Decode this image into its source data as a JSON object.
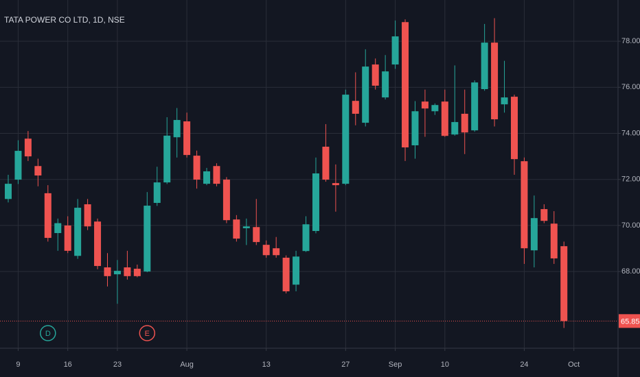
{
  "chart_data": {
    "type": "candlestick",
    "title": "TATA POWER CO LTD, 1D, NSE",
    "up_color": "#26a69a",
    "down_color": "#ef5350",
    "open": [
      71.15,
      71.99,
      73.77,
      72.58,
      71.4,
      69.67,
      70.0,
      68.68,
      70.92,
      70.17,
      68.18,
      67.88,
      68.18,
      68.12,
      68.0,
      70.98,
      71.87,
      73.83,
      74.52,
      73.03,
      71.81,
      72.58,
      71.99,
      70.26,
      69.88,
      69.93,
      69.16,
      69.01,
      68.6,
      67.43,
      68.89,
      69.76,
      73.42,
      71.84,
      71.81,
      75.41,
      74.46,
      76.99,
      75.56,
      76.99,
      78.83,
      73.48,
      75.38,
      74.96,
      75.38,
      73.95,
      74.85,
      74.13,
      75.92,
      77.94,
      75.26,
      75.59,
      72.79,
      68.92,
      70.71,
      70.08,
      69.1
    ],
    "high": [
      72.2,
      73.7,
      74.1,
      72.9,
      71.75,
      70.3,
      70.4,
      71.15,
      71.15,
      70.3,
      68.8,
      68.5,
      68.9,
      68.3,
      71.45,
      72.55,
      74.7,
      75.1,
      74.9,
      73.25,
      72.5,
      72.7,
      72.1,
      70.45,
      70.3,
      71.15,
      69.35,
      69.5,
      68.7,
      68.9,
      70.4,
      72.95,
      74.4,
      72.65,
      75.9,
      76.65,
      77.65,
      77.25,
      77.4,
      78.9,
      78.95,
      75.4,
      75.9,
      75.3,
      75.9,
      76.95,
      75.9,
      76.3,
      78.75,
      79.0,
      77.15,
      75.68,
      72.95,
      71.3,
      70.92,
      70.62,
      69.3
    ],
    "low": [
      71.0,
      71.8,
      72.8,
      71.7,
      69.3,
      68.9,
      68.8,
      68.55,
      69.8,
      68.1,
      67.35,
      66.6,
      67.65,
      67.75,
      67.97,
      70.85,
      71.8,
      72.95,
      72.95,
      71.6,
      71.75,
      71.7,
      70.1,
      69.3,
      69.15,
      69.15,
      68.6,
      68.6,
      67.05,
      67.14,
      68.85,
      69.66,
      71.9,
      70.6,
      71.75,
      74.35,
      74.3,
      75.9,
      75.47,
      76.8,
      72.8,
      72.9,
      73.85,
      74.8,
      73.85,
      73.9,
      73.1,
      74.07,
      75.85,
      74.3,
      74.9,
      72.2,
      68.33,
      68.18,
      70.1,
      68.33,
      65.55
    ],
    "close": [
      71.81,
      73.24,
      73.0,
      72.17,
      69.46,
      70.1,
      68.9,
      70.77,
      69.96,
      68.24,
      67.8,
      68.03,
      67.8,
      67.8,
      70.86,
      71.87,
      73.9,
      74.58,
      73.06,
      71.99,
      72.35,
      71.81,
      70.23,
      69.43,
      69.96,
      69.28,
      68.71,
      68.71,
      67.14,
      68.65,
      70.05,
      72.26,
      71.99,
      71.75,
      75.68,
      74.85,
      76.9,
      76.07,
      76.69,
      78.21,
      73.39,
      74.96,
      75.08,
      75.23,
      73.89,
      74.49,
      74.04,
      76.21,
      77.94,
      74.61,
      75.56,
      72.88,
      69.01,
      70.32,
      70.2,
      68.57,
      65.85
    ],
    "xlim": [
      -0.83,
      61.45
    ],
    "xticks": [
      {
        "value": 1,
        "label": "9"
      },
      {
        "value": 6,
        "label": "16"
      },
      {
        "value": 11,
        "label": "23"
      },
      {
        "value": 18,
        "label": "Aug"
      },
      {
        "value": 26,
        "label": "13"
      },
      {
        "value": 34,
        "label": "27"
      },
      {
        "value": 39,
        "label": "Sep"
      },
      {
        "value": 44,
        "label": "10"
      },
      {
        "value": 52,
        "label": "24"
      },
      {
        "value": 57,
        "label": "Oct"
      }
    ],
    "ylim": [
      64.67,
      79.79
    ],
    "yticks": [
      {
        "value": 68,
        "label": "68.00"
      },
      {
        "value": 70,
        "label": "70.00"
      },
      {
        "value": 72,
        "label": "72.00"
      },
      {
        "value": 74,
        "label": "74.00"
      },
      {
        "value": 76,
        "label": "76.00"
      },
      {
        "value": 78,
        "label": "78.00"
      }
    ],
    "last_price": 65.85,
    "grid": true,
    "events": [
      {
        "label": "D",
        "at": 4,
        "color": "#26a69a"
      },
      {
        "label": "E",
        "at": 14,
        "color": "#ef5350"
      }
    ]
  }
}
